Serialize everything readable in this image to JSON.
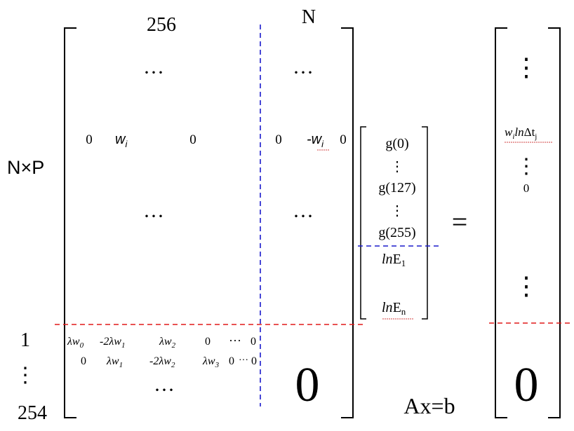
{
  "labels": {
    "cols_256": "256",
    "cols_n": "N",
    "rows_nxp": "N×P",
    "row_1": "1",
    "row_254": "254",
    "equation": "Ax=b",
    "equals": "=",
    "big_zero_left": "0",
    "big_zero_right": "0"
  },
  "dots": {
    "horizontal": "···",
    "vertical": "⋮",
    "inline": "···"
  },
  "data_row": {
    "c1": "0",
    "c2": "w",
    "c2_sub": "i",
    "c3": "0",
    "c4": "0",
    "c5": "-w",
    "c5_sub": "i",
    "c6": "0"
  },
  "smooth_row_1": {
    "t1": "λw",
    "t1_sub": "0",
    "t2": "-2λw",
    "t2_sub": "1",
    "t3": "λw",
    "t3_sub": "2",
    "t4": "0",
    "t5": "0"
  },
  "smooth_row_2": {
    "t1": "0",
    "t2": "λw",
    "t2_sub": "1",
    "t3": "-2λw",
    "t3_sub": "2",
    "t4": "λw",
    "t4_sub": "3",
    "t5": "0",
    "t6": "0"
  },
  "x_vector": {
    "g0": "g(0)",
    "g127": "g(127)",
    "g255": "g(255)",
    "lnE1": "ln",
    "lnE1_base": "E",
    "lnE1_sub": "1",
    "lnEn": "ln",
    "lnEn_base": "E",
    "lnEn_sub": "n"
  },
  "b_vector": {
    "w": "w",
    "w_sub": "i",
    "ln": "ln",
    "dt": "Δt",
    "dt_sub": "j",
    "zero": "0"
  },
  "colors": {
    "ink": "#000000",
    "blue_dash": "#1a1acc",
    "red_dash": "#e01818"
  }
}
